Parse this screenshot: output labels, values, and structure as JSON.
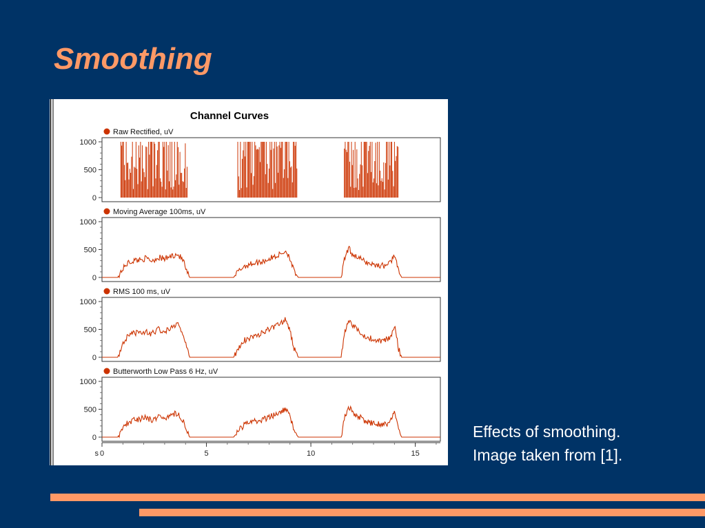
{
  "slide": {
    "title": "Smoothing",
    "caption_lines": [
      "Effects of smoothing.",
      "Image taken from [1]."
    ]
  },
  "colors": {
    "background": "#003366",
    "accent": "#ff9966",
    "trace": "#cc3300"
  },
  "chart_data": {
    "type": "line",
    "title": "Channel Curves",
    "x_axis": {
      "range": [
        0,
        16.2
      ],
      "ticks": [
        0,
        5,
        10,
        15
      ],
      "tick_labels": [
        "0",
        "5",
        "10",
        "15"
      ],
      "unit_label": "s"
    },
    "panels": [
      {
        "name": "Raw Rectified, uV",
        "style": "spikes",
        "ylim": [
          0,
          1000
        ],
        "yticks": [
          0,
          500,
          1000
        ],
        "ytick_labels": [
          "0",
          "500",
          "1000"
        ],
        "bursts": [
          [
            0.9,
            4.1
          ],
          [
            6.5,
            9.35
          ],
          [
            11.6,
            14.2
          ]
        ],
        "peak": 1000
      },
      {
        "name": "Moving Average 100ms, uV",
        "style": "line",
        "ylim": [
          0,
          1000
        ],
        "yticks": [
          0,
          500,
          1000
        ],
        "ytick_labels": [
          "0",
          "500",
          "1000"
        ],
        "x": [
          0.75,
          0.9,
          1.2,
          1.5,
          1.8,
          2.1,
          2.4,
          2.7,
          3.0,
          3.3,
          3.6,
          3.9,
          4.05,
          4.2,
          6.3,
          6.5,
          6.8,
          7.2,
          7.6,
          8.0,
          8.3,
          8.6,
          8.8,
          9.0,
          9.2,
          9.4,
          11.45,
          11.6,
          11.8,
          12.0,
          12.3,
          12.6,
          12.9,
          13.2,
          13.5,
          13.8,
          14.0,
          14.2,
          14.35
        ],
        "y": [
          0,
          100,
          250,
          300,
          320,
          340,
          300,
          360,
          330,
          380,
          420,
          300,
          100,
          0,
          0,
          100,
          200,
          250,
          280,
          330,
          380,
          420,
          480,
          350,
          100,
          0,
          0,
          300,
          520,
          420,
          350,
          280,
          240,
          220,
          210,
          260,
          420,
          100,
          0
        ]
      },
      {
        "name": "RMS 100 ms, uV",
        "style": "line",
        "ylim": [
          0,
          1000
        ],
        "yticks": [
          0,
          500,
          1000
        ],
        "ytick_labels": [
          "0",
          "500",
          "1000"
        ],
        "x": [
          0.75,
          0.9,
          1.2,
          1.5,
          1.8,
          2.1,
          2.4,
          2.7,
          3.0,
          3.3,
          3.6,
          3.9,
          4.05,
          4.2,
          6.3,
          6.5,
          6.8,
          7.2,
          7.6,
          8.0,
          8.3,
          8.6,
          8.8,
          9.0,
          9.2,
          9.4,
          11.45,
          11.6,
          11.8,
          12.0,
          12.3,
          12.6,
          12.9,
          13.2,
          13.5,
          13.8,
          14.0,
          14.2,
          14.35
        ],
        "y": [
          0,
          150,
          350,
          420,
          440,
          450,
          420,
          500,
          460,
          550,
          600,
          420,
          150,
          0,
          0,
          150,
          300,
          380,
          420,
          500,
          560,
          620,
          680,
          480,
          150,
          0,
          0,
          400,
          700,
          560,
          480,
          380,
          330,
          300,
          290,
          350,
          580,
          150,
          0
        ]
      },
      {
        "name": "Butterworth Low Pass 6 Hz, uV",
        "style": "line",
        "ylim": [
          0,
          1000
        ],
        "yticks": [
          0,
          500,
          1000
        ],
        "ytick_labels": [
          "0",
          "500",
          "1000"
        ],
        "x": [
          0.75,
          0.9,
          1.2,
          1.5,
          1.8,
          2.1,
          2.4,
          2.7,
          3.0,
          3.3,
          3.6,
          3.9,
          4.05,
          4.2,
          6.3,
          6.5,
          6.8,
          7.2,
          7.6,
          8.0,
          8.3,
          8.6,
          8.8,
          9.0,
          9.2,
          9.4,
          11.45,
          11.6,
          11.8,
          12.0,
          12.3,
          12.6,
          12.9,
          13.2,
          13.5,
          13.8,
          14.0,
          14.2,
          14.35
        ],
        "y": [
          0,
          100,
          250,
          300,
          330,
          350,
          300,
          380,
          340,
          400,
          430,
          300,
          100,
          0,
          0,
          100,
          220,
          270,
          300,
          360,
          400,
          450,
          520,
          380,
          100,
          0,
          0,
          320,
          560,
          450,
          370,
          290,
          250,
          230,
          220,
          270,
          450,
          100,
          0
        ]
      }
    ],
    "legend": "above each panel"
  }
}
